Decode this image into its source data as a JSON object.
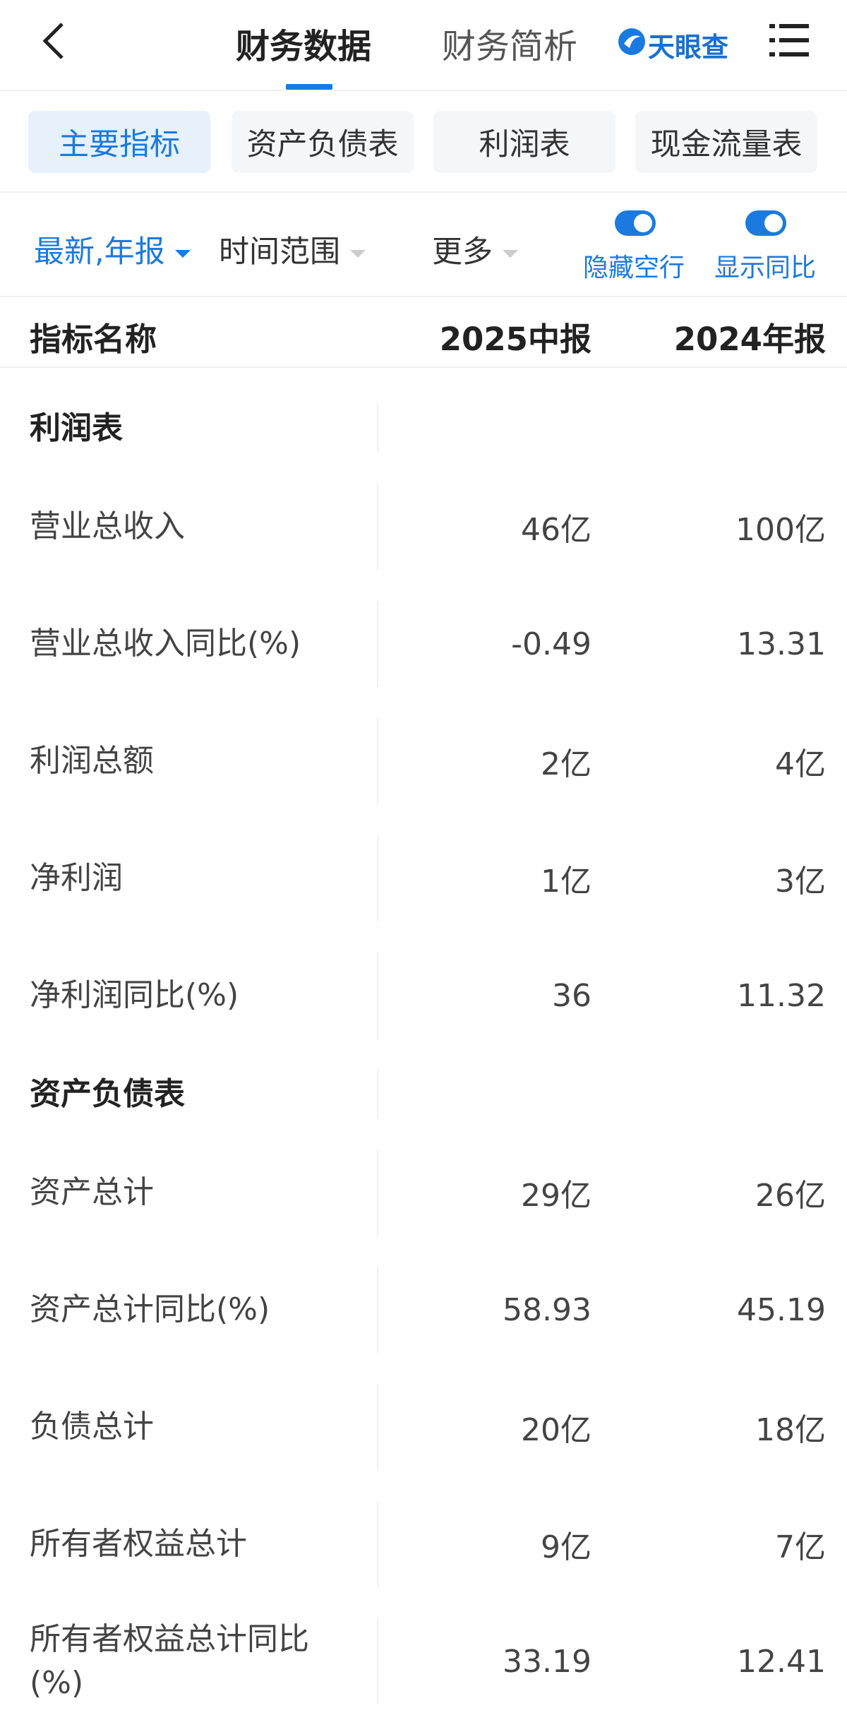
{
  "header": {
    "tabs": [
      "财务数据",
      "财务简析"
    ],
    "logo": "天眼查"
  },
  "subtabs": [
    "主要指标",
    "资产负债表",
    "利润表",
    "现金流量表"
  ],
  "filters": {
    "period": "最新,年报",
    "range": "时间范围",
    "more": "更多",
    "toggles": [
      "隐藏空行",
      "显示同比"
    ]
  },
  "table": {
    "columns": [
      "指标名称",
      "2025中报",
      "2024年报"
    ],
    "sections": [
      {
        "title": "利润表",
        "rows": [
          [
            "营业总收入",
            "46亿",
            "100亿"
          ],
          [
            "营业总收入同比(%)",
            "-0.49",
            "13.31"
          ],
          [
            "利润总额",
            "2亿",
            "4亿"
          ],
          [
            "净利润",
            "1亿",
            "3亿"
          ],
          [
            "净利润同比(%)",
            "36",
            "11.32"
          ]
        ]
      },
      {
        "title": "资产负债表",
        "rows": [
          [
            "资产总计",
            "29亿",
            "26亿"
          ],
          [
            "资产总计同比(%)",
            "58.93",
            "45.19"
          ],
          [
            "负债总计",
            "20亿",
            "18亿"
          ],
          [
            "所有者权益总计",
            "9亿",
            "7亿"
          ],
          [
            "所有者权益总计同比(%)",
            "33.19",
            "12.41"
          ]
        ]
      }
    ]
  }
}
